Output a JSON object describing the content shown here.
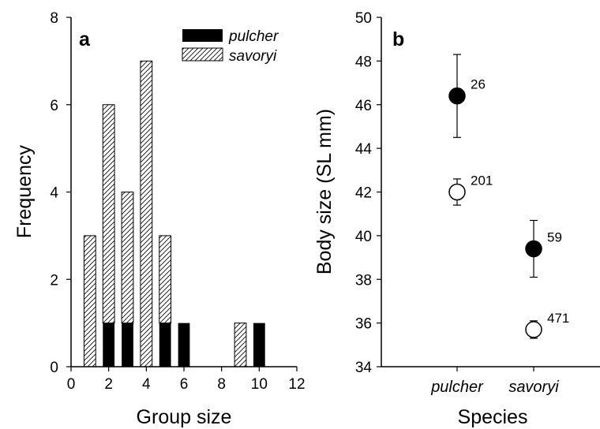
{
  "chart_data": [
    {
      "type": "bar",
      "panel": "a",
      "xlabel": "Group size",
      "ylabel": "Frequency",
      "xlim": [
        0,
        12
      ],
      "ylim": [
        0,
        8
      ],
      "xticks": [
        0,
        2,
        4,
        6,
        8,
        10,
        12
      ],
      "yticks": [
        0,
        2,
        4,
        6,
        8
      ],
      "grid": false,
      "legend_position": "top-right",
      "categories": [
        1,
        2,
        3,
        4,
        5,
        6,
        9,
        10
      ],
      "series": [
        {
          "name": "pulcher",
          "pattern": "solid",
          "color": "#000000",
          "values": [
            0,
            1,
            1,
            0,
            1,
            1,
            0,
            1
          ]
        },
        {
          "name": "savoryi",
          "pattern": "hatched",
          "color": "#ffffff",
          "values": [
            3,
            5,
            3,
            7,
            2,
            0,
            1,
            0
          ]
        }
      ]
    },
    {
      "type": "scatter",
      "panel": "b",
      "xlabel": "Species",
      "ylabel": "Body size (SL mm)",
      "ylim": [
        34,
        50
      ],
      "yticks": [
        34,
        36,
        38,
        40,
        42,
        44,
        46,
        48,
        50
      ],
      "grid": false,
      "categories": [
        "pulcher",
        "savoryi"
      ],
      "points": [
        {
          "category": "pulcher",
          "fill": "#000000",
          "y": 46.4,
          "err_low": 44.5,
          "err_high": 48.3,
          "label": "26"
        },
        {
          "category": "pulcher",
          "fill": "#ffffff",
          "y": 42.0,
          "err_low": 41.4,
          "err_high": 42.6,
          "label": "201"
        },
        {
          "category": "savoryi",
          "fill": "#000000",
          "y": 39.4,
          "err_low": 38.1,
          "err_high": 40.7,
          "label": "59"
        },
        {
          "category": "savoryi",
          "fill": "#ffffff",
          "y": 35.7,
          "err_low": 35.3,
          "err_high": 36.1,
          "label": "471"
        }
      ]
    }
  ]
}
